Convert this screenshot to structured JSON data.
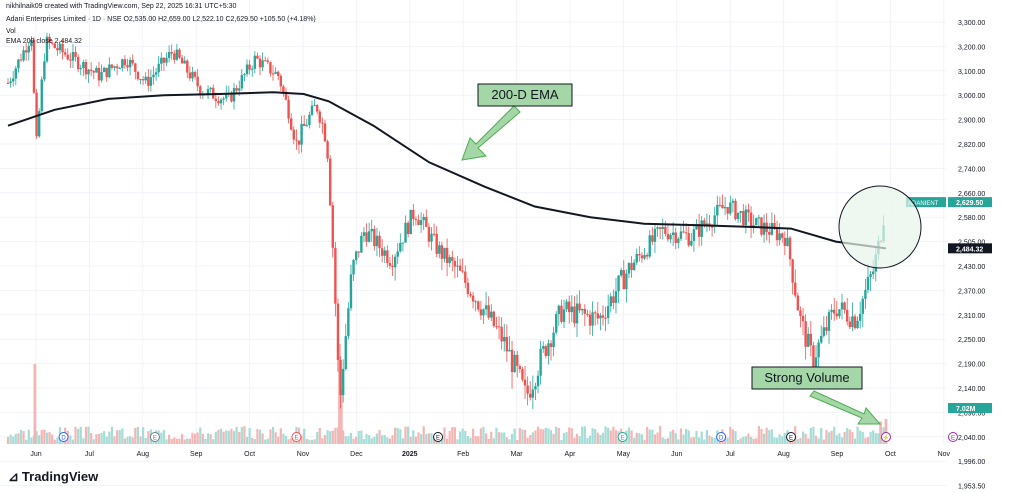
{
  "header": {
    "creator": "nikhilnaik09 created with TradingView.com, Sep 22, 2025 16:31 UTC+5:30",
    "symbol_line": "Adani Enterprises Limited · 1D · NSE  O2,535.00 H2,659.00 L2,522.10 C2,629.50 +105.50 (+4.18%)",
    "vol_line": "Vol",
    "ema_line": "EMA 200 close 2,484.32"
  },
  "branding": {
    "logo_text": "TradingView",
    "logo_icon": "tradingview-logo-icon"
  },
  "colors": {
    "up": "#26a69a",
    "down": "#ef5350",
    "ema": "#131722",
    "annot_fill": "#a5d6a7",
    "annot_stroke": "#4caf50",
    "circle_fill": "#e8f5e9",
    "vol_up": "#a6dcd6",
    "vol_down": "#f4b6b4"
  },
  "annotations": [
    {
      "id": "ema-label",
      "text": "200-D EMA"
    },
    {
      "id": "volume-label",
      "text": "Strong Volume"
    }
  ],
  "chart_data": {
    "type": "candlestick",
    "title": "Adani Enterprises Limited · 1D · NSE",
    "x_axis_labels": [
      "Jun",
      "Jul",
      "Aug",
      "Sep",
      "Oct",
      "Nov",
      "Dec",
      "2025",
      "Feb",
      "Mar",
      "Apr",
      "May",
      "Jun",
      "Jul",
      "Aug",
      "Sep",
      "Oct",
      "Nov"
    ],
    "y_ticks": [
      "3,300.00",
      "3,200.00",
      "3,100.00",
      "3,000.00",
      "2,900.00",
      "2,820.00",
      "2,740.00",
      "2,660.00",
      "2,580.00",
      "2,505.00",
      "2,430.00",
      "2,370.00",
      "2,310.00",
      "2,250.00",
      "2,190.00",
      "2,140.00",
      "2,090.00",
      "2,040.00",
      "1,996.00",
      "1,953.50"
    ],
    "last_price": {
      "label": "ADANIENT",
      "value": "2,629.50"
    },
    "ema_value": "2,484.32",
    "volume_value": "7.02M",
    "ema_path": [
      {
        "date": "2024-05-20",
        "value": 2880
      },
      {
        "date": "2024-06-15",
        "value": 2940
      },
      {
        "date": "2024-07-15",
        "value": 2985
      },
      {
        "date": "2024-08-15",
        "value": 3000
      },
      {
        "date": "2024-09-15",
        "value": 3005
      },
      {
        "date": "2024-10-15",
        "value": 3012
      },
      {
        "date": "2024-11-01",
        "value": 3005
      },
      {
        "date": "2024-11-15",
        "value": 2975
      },
      {
        "date": "2024-12-10",
        "value": 2880
      },
      {
        "date": "2025-01-10",
        "value": 2760
      },
      {
        "date": "2025-02-10",
        "value": 2680
      },
      {
        "date": "2025-03-10",
        "value": 2615
      },
      {
        "date": "2025-04-10",
        "value": 2580
      },
      {
        "date": "2025-05-10",
        "value": 2560
      },
      {
        "date": "2025-06-10",
        "value": 2555
      },
      {
        "date": "2025-07-10",
        "value": 2550
      },
      {
        "date": "2025-07-31",
        "value": 2545
      },
      {
        "date": "2025-08-25",
        "value": 2505
      },
      {
        "date": "2025-09-22",
        "value": 2484
      }
    ],
    "price_path": [
      {
        "date": "2024-05-20",
        "value": 3050
      },
      {
        "date": "2024-06-03",
        "value": 3260
      },
      {
        "date": "2024-06-04",
        "value": 2740
      },
      {
        "date": "2024-06-10",
        "value": 3220
      },
      {
        "date": "2024-06-25",
        "value": 3150
      },
      {
        "date": "2024-07-10",
        "value": 3080
      },
      {
        "date": "2024-07-25",
        "value": 3150
      },
      {
        "date": "2024-08-05",
        "value": 3050
      },
      {
        "date": "2024-08-20",
        "value": 3180
      },
      {
        "date": "2024-09-05",
        "value": 3020
      },
      {
        "date": "2024-09-20",
        "value": 2980
      },
      {
        "date": "2024-10-05",
        "value": 3150
      },
      {
        "date": "2024-10-18",
        "value": 3080
      },
      {
        "date": "2024-10-28",
        "value": 2820
      },
      {
        "date": "2024-11-08",
        "value": 2960
      },
      {
        "date": "2024-11-14",
        "value": 2830
      },
      {
        "date": "2024-11-21",
        "value": 2100
      },
      {
        "date": "2024-11-28",
        "value": 2420
      },
      {
        "date": "2024-12-05",
        "value": 2540
      },
      {
        "date": "2024-12-20",
        "value": 2450
      },
      {
        "date": "2025-01-02",
        "value": 2600
      },
      {
        "date": "2025-01-15",
        "value": 2480
      },
      {
        "date": "2025-02-01",
        "value": 2380
      },
      {
        "date": "2025-02-20",
        "value": 2250
      },
      {
        "date": "2025-03-05",
        "value": 2120
      },
      {
        "date": "2025-03-25",
        "value": 2320
      },
      {
        "date": "2025-04-15",
        "value": 2300
      },
      {
        "date": "2025-05-01",
        "value": 2420
      },
      {
        "date": "2025-05-20",
        "value": 2540
      },
      {
        "date": "2025-06-05",
        "value": 2520
      },
      {
        "date": "2025-06-25",
        "value": 2620
      },
      {
        "date": "2025-07-10",
        "value": 2560
      },
      {
        "date": "2025-07-28",
        "value": 2520
      },
      {
        "date": "2025-08-05",
        "value": 2300
      },
      {
        "date": "2025-08-12",
        "value": 2200
      },
      {
        "date": "2025-08-25",
        "value": 2330
      },
      {
        "date": "2025-09-05",
        "value": 2300
      },
      {
        "date": "2025-09-15",
        "value": 2420
      },
      {
        "date": "2025-09-19",
        "value": 2524
      },
      {
        "date": "2025-09-22",
        "value": 2629.5
      }
    ],
    "volume_spikes": [
      {
        "date": "2024-06-04",
        "value": 3.2
      },
      {
        "date": "2024-11-21",
        "value": 4.0
      },
      {
        "date": "2024-11-22",
        "value": 2.2
      },
      {
        "date": "2025-09-19",
        "value": 0.9
      },
      {
        "date": "2025-09-22",
        "value": 1.0
      }
    ]
  }
}
